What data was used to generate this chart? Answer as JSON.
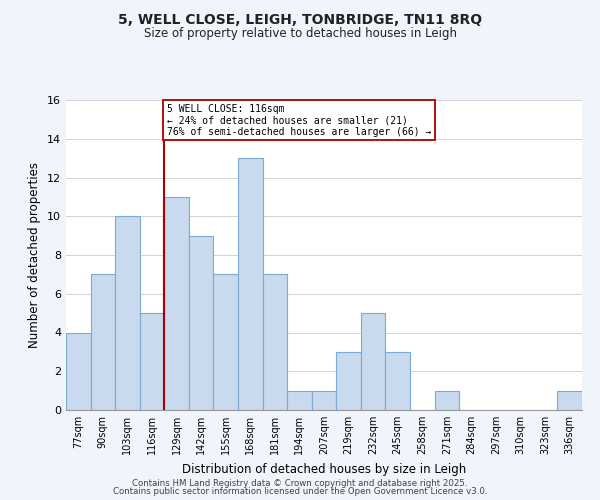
{
  "title": "5, WELL CLOSE, LEIGH, TONBRIDGE, TN11 8RQ",
  "subtitle": "Size of property relative to detached houses in Leigh",
  "xlabel": "Distribution of detached houses by size in Leigh",
  "ylabel": "Number of detached properties",
  "categories": [
    "77sqm",
    "90sqm",
    "103sqm",
    "116sqm",
    "129sqm",
    "142sqm",
    "155sqm",
    "168sqm",
    "181sqm",
    "194sqm",
    "207sqm",
    "219sqm",
    "232sqm",
    "245sqm",
    "258sqm",
    "271sqm",
    "284sqm",
    "297sqm",
    "310sqm",
    "323sqm",
    "336sqm"
  ],
  "values": [
    4,
    7,
    10,
    5,
    11,
    9,
    7,
    13,
    7,
    1,
    1,
    3,
    5,
    3,
    0,
    1,
    0,
    0,
    0,
    0,
    1
  ],
  "bar_color": "#c9d9ee",
  "bar_edge_color": "#7baad4",
  "highlight_index": 3,
  "highlight_line_color": "#aa0000",
  "annotation_box_color": "#ffffff",
  "annotation_box_edge_color": "#aa0000",
  "annotation_title": "5 WELL CLOSE: 116sqm",
  "annotation_line1": "← 24% of detached houses are smaller (21)",
  "annotation_line2": "76% of semi-detached houses are larger (66) →",
  "ylim": [
    0,
    16
  ],
  "yticks": [
    0,
    2,
    4,
    6,
    8,
    10,
    12,
    14,
    16
  ],
  "grid_color": "#cccccc",
  "bg_color": "#ffffff",
  "fig_bg_color": "#f0f4fb",
  "footer1": "Contains HM Land Registry data © Crown copyright and database right 2025.",
  "footer2": "Contains public sector information licensed under the Open Government Licence v3.0."
}
